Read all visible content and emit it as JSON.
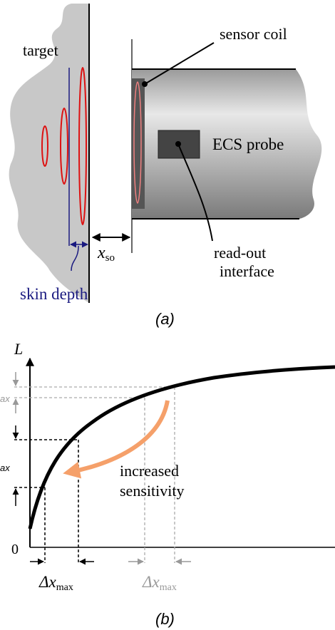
{
  "panel_a": {
    "target": "target",
    "sensor_coil": "sensor coil",
    "probe": "ECS probe",
    "distance": {
      "symbol": "x",
      "subscript": "so"
    },
    "readout": [
      "read-out",
      "interface"
    ],
    "skin_depth": "skin depth",
    "caption": "(a)"
  },
  "panel_b": {
    "y_axis_label": "L",
    "origin": "0",
    "cut_label_high": "ax",
    "cut_label_low": "ax",
    "annotation": [
      "increased",
      "sensitivity"
    ],
    "delta_x_low": {
      "symbol": "Δx",
      "subscript": "max"
    },
    "delta_x_high": {
      "symbol": "Δx",
      "subscript": "max"
    },
    "caption": "(b)"
  }
}
